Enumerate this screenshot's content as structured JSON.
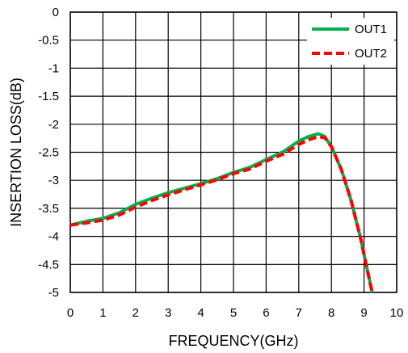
{
  "chart_data": {
    "type": "line",
    "xlabel": "FREQUENCY(GHz)",
    "ylabel": "INSERTION LOSS(dB)",
    "xlim": [
      0,
      10
    ],
    "ylim": [
      -5,
      0
    ],
    "x_ticks": [
      0,
      1,
      2,
      3,
      4,
      5,
      6,
      7,
      8,
      9,
      10
    ],
    "y_ticks": [
      0,
      -0.5,
      -1,
      -1.5,
      -2,
      -2.5,
      -3,
      -3.5,
      -4,
      -4.5,
      -5
    ],
    "x_tick_labels": [
      "0",
      "1",
      "2",
      "3",
      "4",
      "5",
      "6",
      "7",
      "8",
      "9",
      "10"
    ],
    "y_tick_labels": [
      "0",
      "-0.5",
      "-1",
      "-1.5",
      "-2",
      "-2.5",
      "-3",
      "-3.5",
      "-4",
      "-4.5",
      "-5"
    ],
    "grid": true,
    "legend_position": "top-right",
    "series": [
      {
        "name": "OUT1",
        "color": "#00b050",
        "style": "solid",
        "x": [
          0,
          0.5,
          1,
          1.5,
          2,
          2.5,
          3,
          3.5,
          4,
          4.5,
          5,
          5.5,
          6,
          6.5,
          7,
          7.3,
          7.6,
          7.8,
          8,
          8.3,
          8.6,
          8.9,
          9.1,
          9.25
        ],
        "y": [
          -3.8,
          -3.73,
          -3.68,
          -3.58,
          -3.43,
          -3.32,
          -3.22,
          -3.14,
          -3.06,
          -2.97,
          -2.86,
          -2.77,
          -2.63,
          -2.5,
          -2.3,
          -2.22,
          -2.17,
          -2.22,
          -2.4,
          -2.8,
          -3.35,
          -4.05,
          -4.6,
          -5.0
        ]
      },
      {
        "name": "OUT2",
        "color": "#ff0000",
        "style": "dashed",
        "x": [
          0,
          0.5,
          1,
          1.5,
          2,
          2.5,
          3,
          3.5,
          4,
          4.5,
          5,
          5.5,
          6,
          6.5,
          7,
          7.3,
          7.6,
          7.8,
          8,
          8.3,
          8.6,
          8.9,
          9.1,
          9.25
        ],
        "y": [
          -3.8,
          -3.76,
          -3.71,
          -3.62,
          -3.48,
          -3.36,
          -3.26,
          -3.17,
          -3.08,
          -2.99,
          -2.88,
          -2.8,
          -2.66,
          -2.54,
          -2.36,
          -2.28,
          -2.22,
          -2.24,
          -2.4,
          -2.8,
          -3.35,
          -4.05,
          -4.6,
          -5.0
        ]
      }
    ]
  }
}
